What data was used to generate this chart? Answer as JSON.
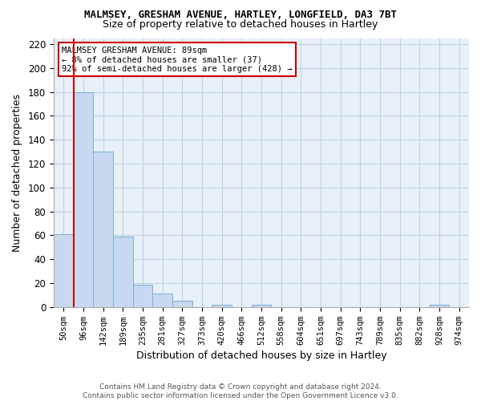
{
  "title_line1": "MALMSEY, GRESHAM AVENUE, HARTLEY, LONGFIELD, DA3 7BT",
  "title_line2": "Size of property relative to detached houses in Hartley",
  "xlabel": "Distribution of detached houses by size in Hartley",
  "ylabel": "Number of detached properties",
  "categories": [
    "50sqm",
    "96sqm",
    "142sqm",
    "189sqm",
    "235sqm",
    "281sqm",
    "327sqm",
    "373sqm",
    "420sqm",
    "466sqm",
    "512sqm",
    "558sqm",
    "604sqm",
    "651sqm",
    "697sqm",
    "743sqm",
    "789sqm",
    "835sqm",
    "882sqm",
    "928sqm",
    "974sqm"
  ],
  "values": [
    61,
    180,
    130,
    59,
    19,
    11,
    5,
    0,
    2,
    0,
    2,
    0,
    0,
    0,
    0,
    0,
    0,
    0,
    0,
    2,
    0
  ],
  "bar_color": "#c8d8ee",
  "bar_edge_color": "#7aaed4",
  "vline_color": "#cc0000",
  "vline_x_index": 1,
  "ylim": [
    0,
    225
  ],
  "yticks": [
    0,
    20,
    40,
    60,
    80,
    100,
    120,
    140,
    160,
    180,
    200,
    220
  ],
  "annotation_title": "MALMSEY GRESHAM AVENUE: 89sqm",
  "annotation_line1": "← 8% of detached houses are smaller (37)",
  "annotation_line2": "92% of semi-detached houses are larger (428) →",
  "annotation_box_color": "#ffffff",
  "annotation_box_edge_color": "#cc0000",
  "footer_line1": "Contains HM Land Registry data © Crown copyright and database right 2024.",
  "footer_line2": "Contains public sector information licensed under the Open Government Licence v3.0.",
  "background_color": "#ffffff",
  "plot_bg_color": "#e8f0f8",
  "grid_color": "#c0d0e4"
}
